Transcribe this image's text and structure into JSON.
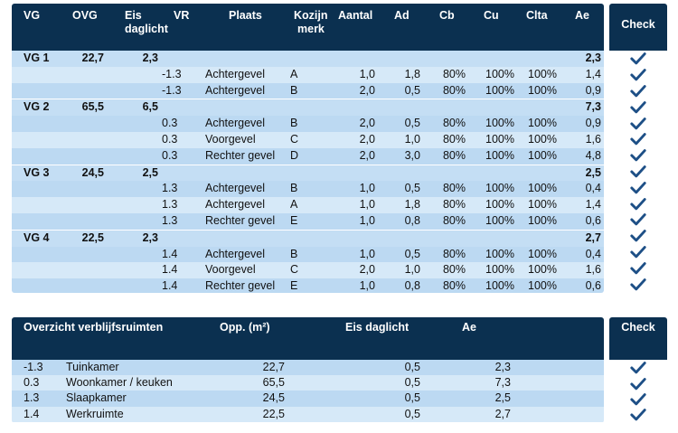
{
  "table1": {
    "headers": {
      "vg": "VG",
      "ovg": "OVG",
      "eis_line1": "Eis",
      "eis_line2": "daglicht",
      "vr": "VR",
      "plaats": "Plaats",
      "kozijn_line1": "Kozijn",
      "kozijn_line2": "merk",
      "aantal": "Aantal",
      "ad": "Ad",
      "cb": "Cb",
      "cu": "Cu",
      "clta": "Clta",
      "ae": "Ae",
      "check": "Check"
    },
    "rows": [
      {
        "type": "group",
        "vg": "VG 1",
        "ovg": "22,7",
        "eis": "2,3",
        "ae": "2,3"
      },
      {
        "type": "item",
        "vr": "-1.3",
        "plaats": "Achtergevel",
        "kozijn": "A",
        "aantal": "1,0",
        "ad": "1,8",
        "cb": "80%",
        "cu": "100%",
        "clta": "100%",
        "ae": "1,4"
      },
      {
        "type": "item",
        "vr": "-1.3",
        "plaats": "Achtergevel",
        "kozijn": "B",
        "aantal": "2,0",
        "ad": "0,5",
        "cb": "80%",
        "cu": "100%",
        "clta": "100%",
        "ae": "0,9"
      },
      {
        "type": "group",
        "vg": "VG 2",
        "ovg": "65,5",
        "eis": "6,5",
        "ae": "7,3"
      },
      {
        "type": "item",
        "vr": "0.3",
        "plaats": "Achtergevel",
        "kozijn": "B",
        "aantal": "2,0",
        "ad": "0,5",
        "cb": "80%",
        "cu": "100%",
        "clta": "100%",
        "ae": "0,9"
      },
      {
        "type": "item",
        "vr": "0.3",
        "plaats": "Voorgevel",
        "kozijn": "C",
        "aantal": "2,0",
        "ad": "1,0",
        "cb": "80%",
        "cu": "100%",
        "clta": "100%",
        "ae": "1,6"
      },
      {
        "type": "item",
        "vr": "0.3",
        "plaats": "Rechter gevel",
        "kozijn": "D",
        "aantal": "2,0",
        "ad": "3,0",
        "cb": "80%",
        "cu": "100%",
        "clta": "100%",
        "ae": "4,8"
      },
      {
        "type": "group",
        "vg": "VG 3",
        "ovg": "24,5",
        "eis": "2,5",
        "ae": "2,5"
      },
      {
        "type": "item",
        "vr": "1.3",
        "plaats": "Achtergevel",
        "kozijn": "B",
        "aantal": "1,0",
        "ad": "0,5",
        "cb": "80%",
        "cu": "100%",
        "clta": "100%",
        "ae": "0,4"
      },
      {
        "type": "item",
        "vr": "1.3",
        "plaats": "Achtergevel",
        "kozijn": "A",
        "aantal": "1,0",
        "ad": "1,8",
        "cb": "80%",
        "cu": "100%",
        "clta": "100%",
        "ae": "1,4"
      },
      {
        "type": "item",
        "vr": "1.3",
        "plaats": "Rechter gevel",
        "kozijn": "E",
        "aantal": "1,0",
        "ad": "0,8",
        "cb": "80%",
        "cu": "100%",
        "clta": "100%",
        "ae": "0,6"
      },
      {
        "type": "group",
        "vg": "VG 4",
        "ovg": "22,5",
        "eis": "2,3",
        "ae": "2,7"
      },
      {
        "type": "item",
        "vr": "1.4",
        "plaats": "Achtergevel",
        "kozijn": "B",
        "aantal": "1,0",
        "ad": "0,5",
        "cb": "80%",
        "cu": "100%",
        "clta": "100%",
        "ae": "0,4"
      },
      {
        "type": "item",
        "vr": "1.4",
        "plaats": "Voorgevel",
        "kozijn": "C",
        "aantal": "2,0",
        "ad": "1,0",
        "cb": "80%",
        "cu": "100%",
        "clta": "100%",
        "ae": "1,6"
      },
      {
        "type": "item",
        "vr": "1.4",
        "plaats": "Rechter gevel",
        "kozijn": "E",
        "aantal": "1,0",
        "ad": "0,8",
        "cb": "80%",
        "cu": "100%",
        "clta": "100%",
        "ae": "0,6"
      }
    ]
  },
  "table2": {
    "headers": {
      "title": "Overzicht verblijfsruimten",
      "opp": "Opp. (m²)",
      "eis": "Eis daglicht",
      "ae": "Ae",
      "check": "Check"
    },
    "rows": [
      {
        "vr": "-1.3",
        "name": "Tuinkamer",
        "opp": "22,7",
        "eis": "0,5",
        "ae": "2,3"
      },
      {
        "vr": "0.3",
        "name": "Woonkamer / keuken",
        "opp": "65,5",
        "eis": "0,5",
        "ae": "7,3"
      },
      {
        "vr": "1.3",
        "name": "Slaapkamer",
        "opp": "24,5",
        "eis": "0,5",
        "ae": "2,5"
      },
      {
        "vr": "1.4",
        "name": "Werkruimte",
        "opp": "22,5",
        "eis": "0,5",
        "ae": "2,7"
      }
    ]
  },
  "colors": {
    "header_bg": "#0b3050",
    "check_icon": "#1d4f86"
  },
  "icons": {
    "check": "checkmark-icon"
  }
}
